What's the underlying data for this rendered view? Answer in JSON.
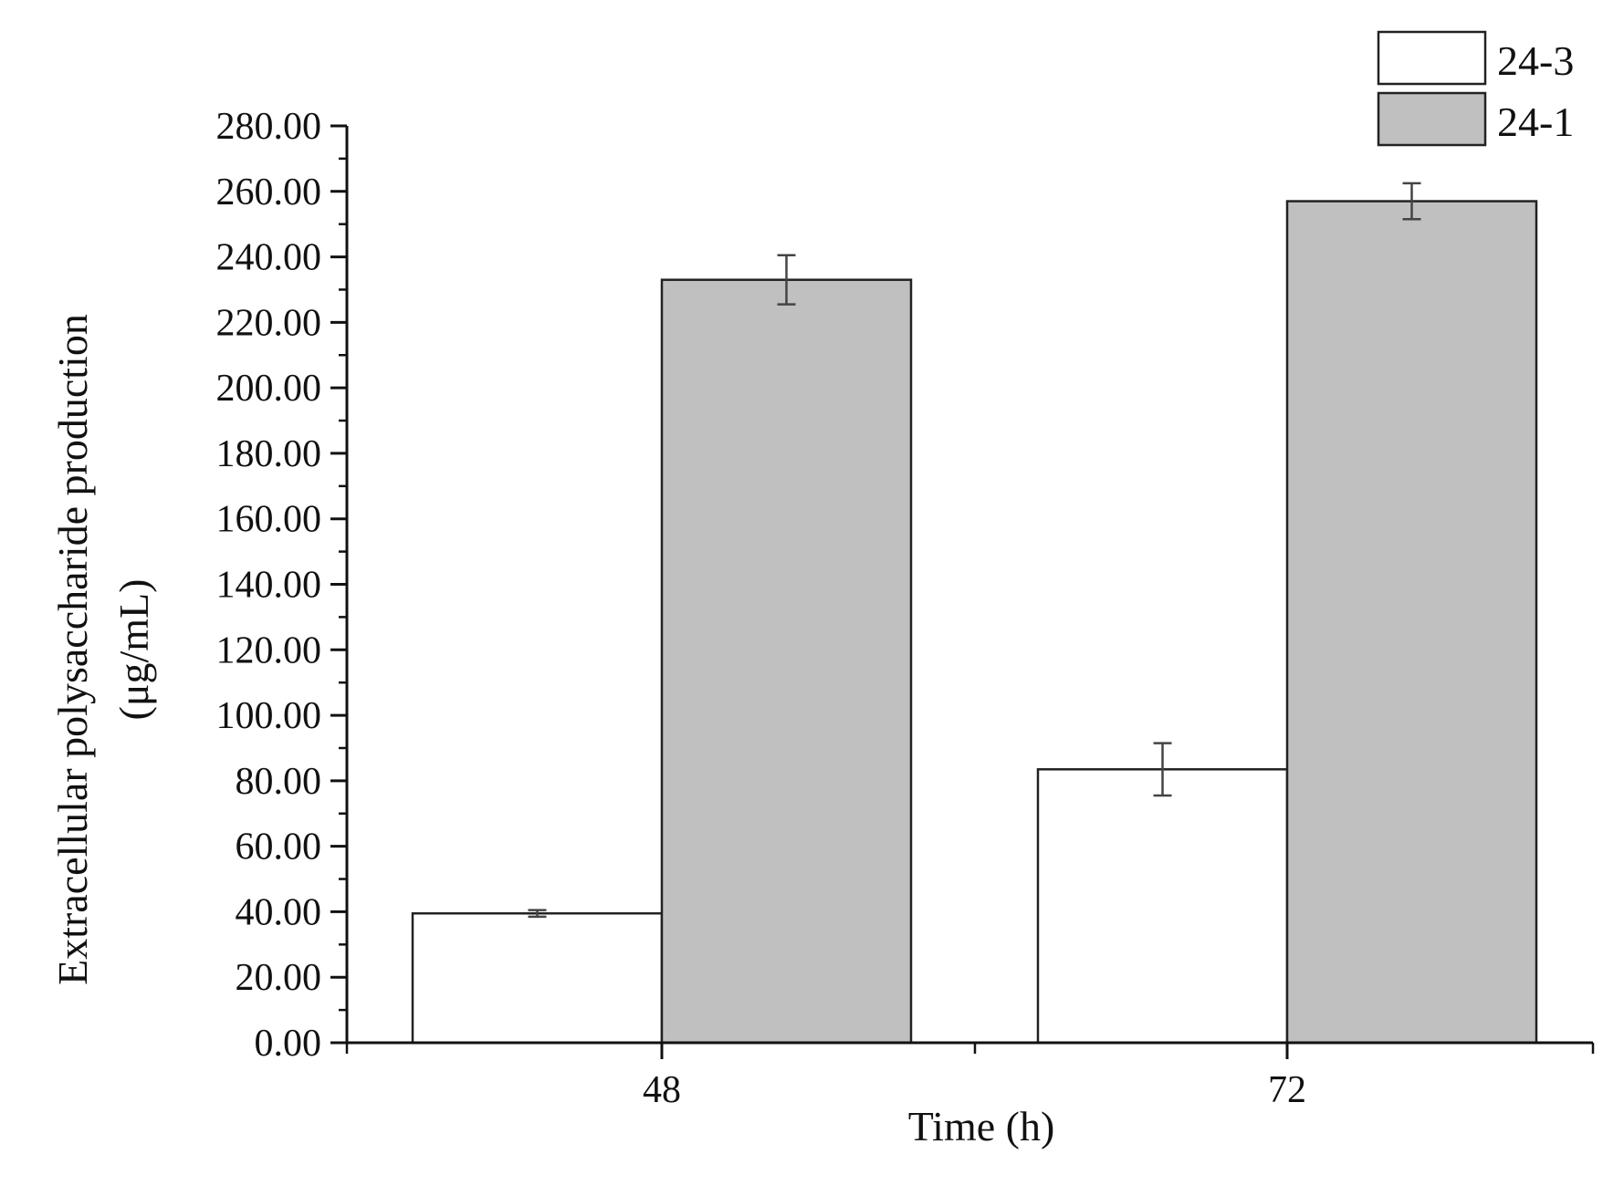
{
  "chart_data": {
    "type": "bar",
    "xlabel": "Time (h)",
    "ylabel_lines": [
      "Extracellular polysaccharide production",
      "(μg/mL)"
    ],
    "categories": [
      "48",
      "72"
    ],
    "series": [
      {
        "name": "24-3",
        "values": [
          39.5,
          83.5
        ],
        "errors": [
          1.0,
          8.0
        ],
        "color": "#ffffff"
      },
      {
        "name": "24-1",
        "values": [
          233.0,
          257.0
        ],
        "errors": [
          7.5,
          5.5
        ],
        "color": "#c0c0c0"
      }
    ],
    "ylim": [
      0,
      280
    ],
    "yticks": [
      "0.00",
      "20.00",
      "40.00",
      "60.00",
      "80.00",
      "100.00",
      "120.00",
      "140.00",
      "160.00",
      "180.00",
      "200.00",
      "220.00",
      "240.00",
      "260.00",
      "280.00"
    ],
    "legend_position": "top-right",
    "grid": false
  }
}
